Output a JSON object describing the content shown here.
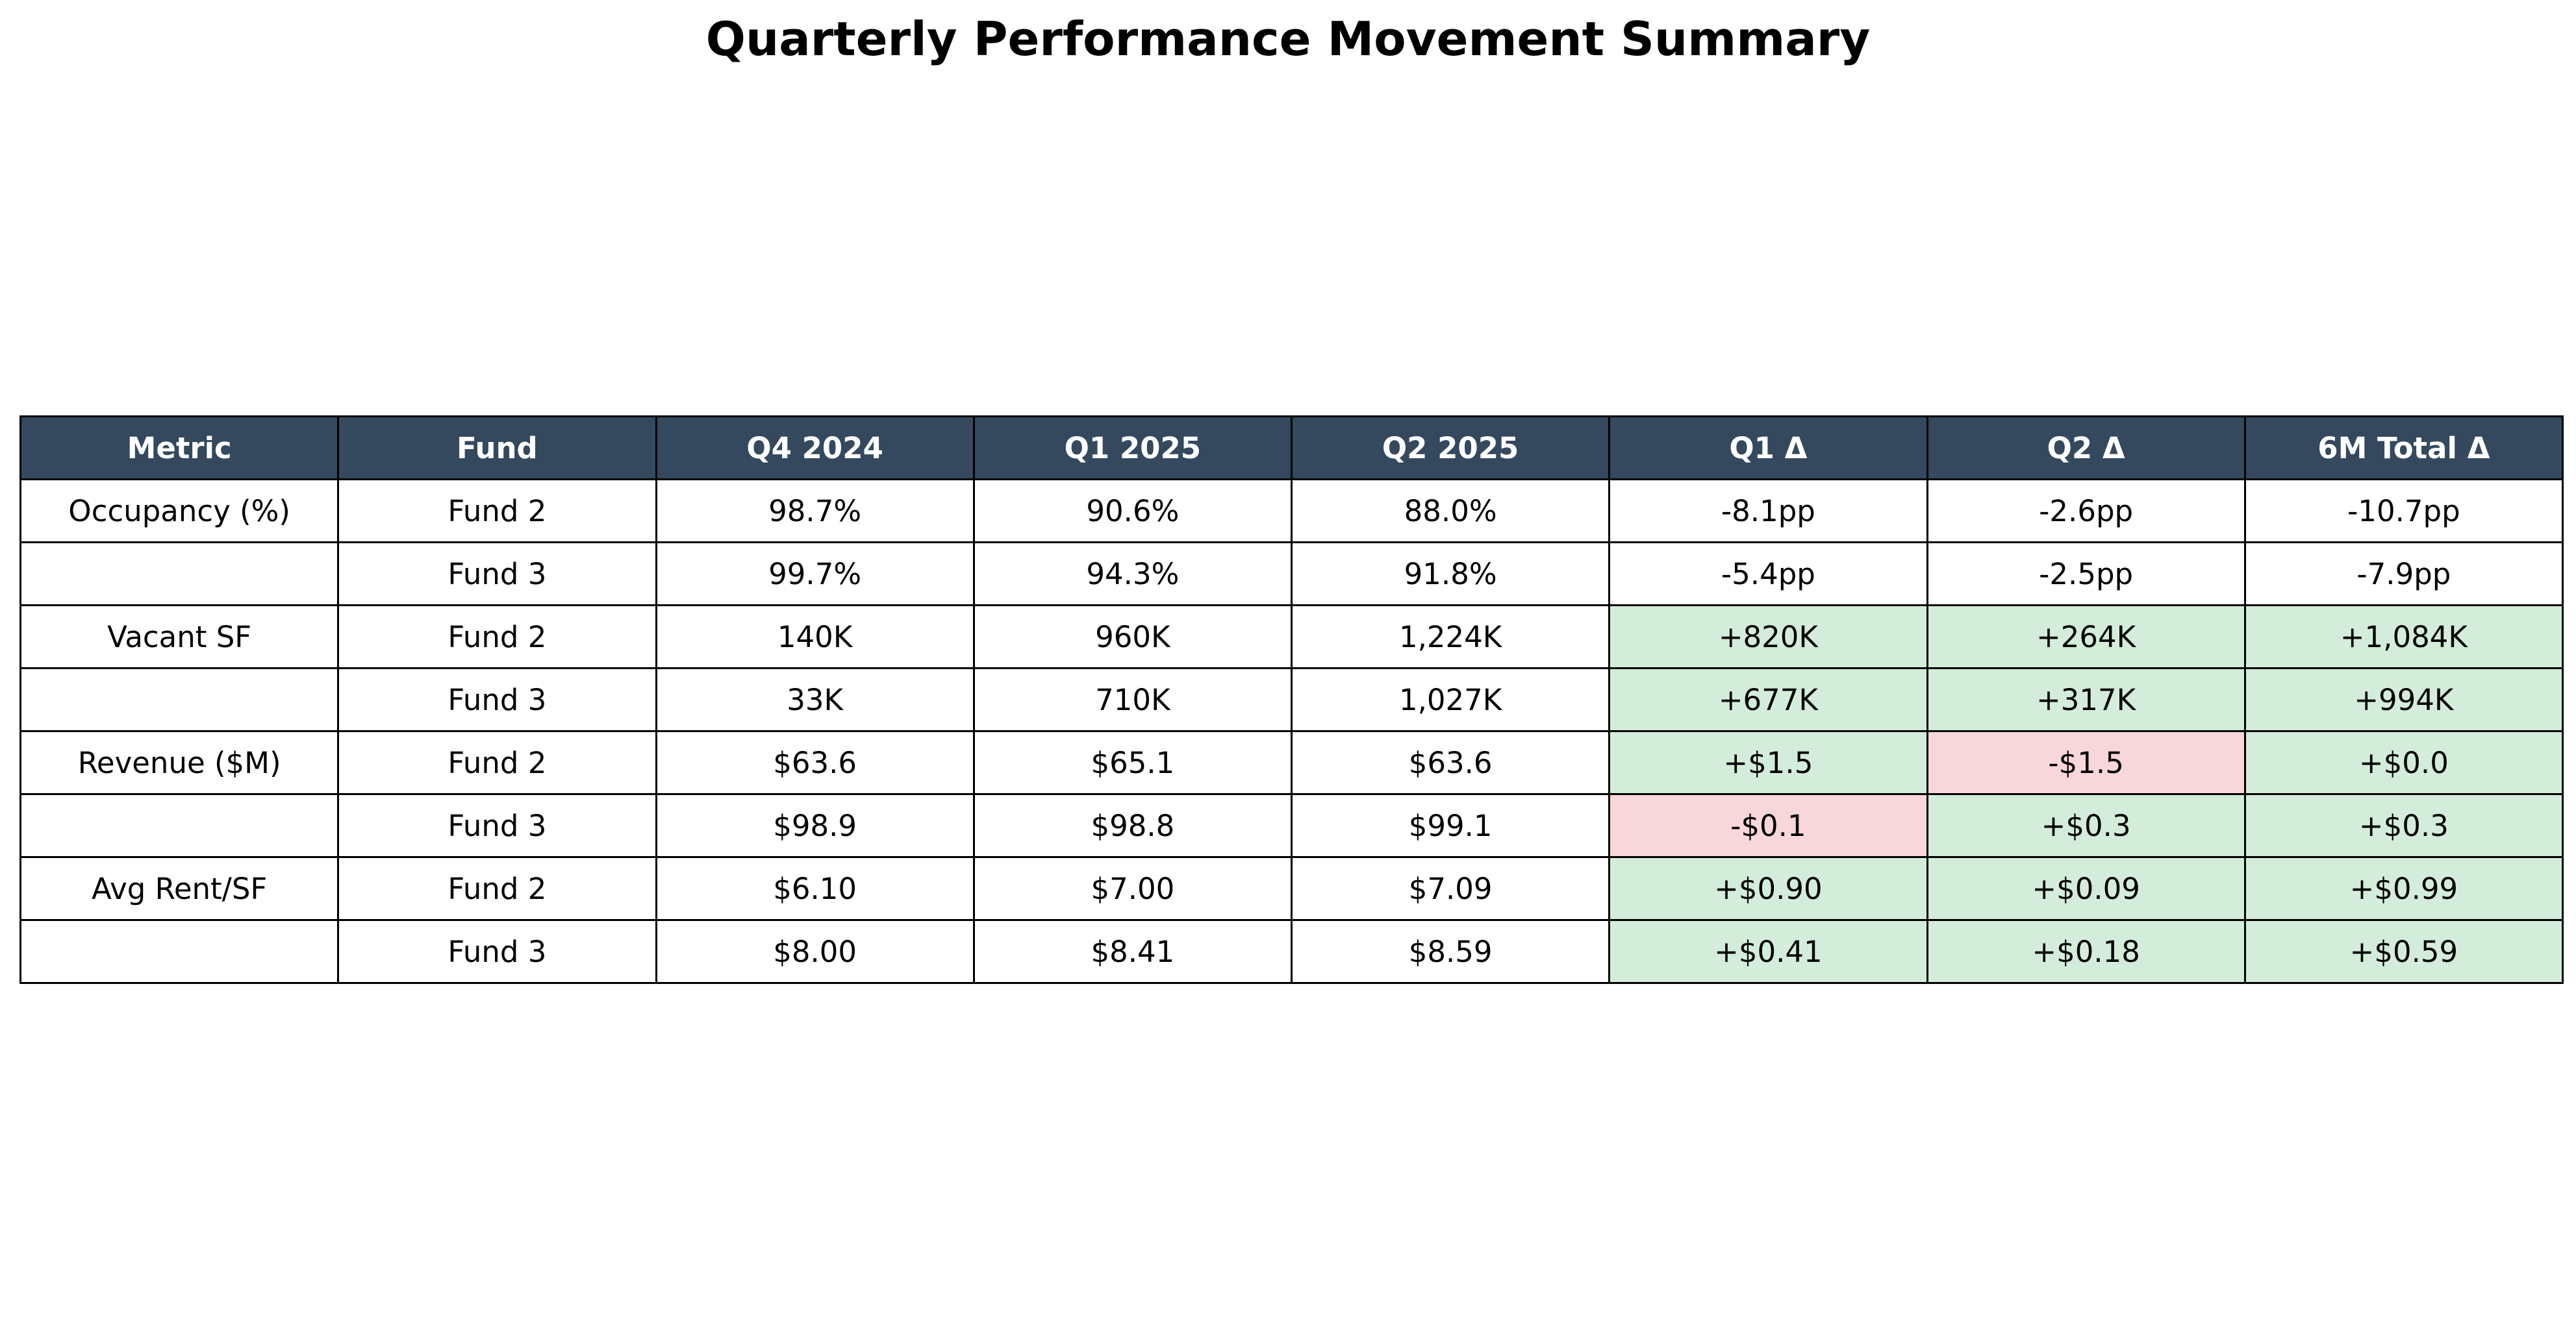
{
  "title": "Quarterly Performance Movement Summary",
  "colors": {
    "header_bg": "#34495e",
    "header_text": "#ffffff",
    "positive_bg": "#d4edda",
    "negative_bg": "#f8d7da",
    "neutral_bg": "#ffffff",
    "border": "#000000"
  },
  "chart_data": {
    "type": "table",
    "title": "Quarterly Performance Movement Summary",
    "columns": [
      "Metric",
      "Fund",
      "Q4 2024",
      "Q1 2025",
      "Q2 2025",
      "Q1 Δ",
      "Q2 Δ",
      "6M Total Δ"
    ],
    "rows": [
      {
        "cells": [
          "Occupancy (%)",
          "Fund 2",
          "98.7%",
          "90.6%",
          "88.0%",
          "-8.1pp",
          "-2.6pp",
          "-10.7pp"
        ],
        "delta_highlight": [
          "none",
          "none",
          "none"
        ]
      },
      {
        "cells": [
          "",
          "Fund 3",
          "99.7%",
          "94.3%",
          "91.8%",
          "-5.4pp",
          "-2.5pp",
          "-7.9pp"
        ],
        "delta_highlight": [
          "none",
          "none",
          "none"
        ]
      },
      {
        "cells": [
          "Vacant SF",
          "Fund 2",
          "140K",
          "960K",
          "1,224K",
          "+820K",
          "+264K",
          "+1,084K"
        ],
        "delta_highlight": [
          "pos",
          "pos",
          "pos"
        ]
      },
      {
        "cells": [
          "",
          "Fund 3",
          "33K",
          "710K",
          "1,027K",
          "+677K",
          "+317K",
          "+994K"
        ],
        "delta_highlight": [
          "pos",
          "pos",
          "pos"
        ]
      },
      {
        "cells": [
          "Revenue ($M)",
          "Fund 2",
          "$63.6",
          "$65.1",
          "$63.6",
          "+$1.5",
          "-$1.5",
          "+$0.0"
        ],
        "delta_highlight": [
          "pos",
          "neg",
          "pos"
        ]
      },
      {
        "cells": [
          "",
          "Fund 3",
          "$98.9",
          "$98.8",
          "$99.1",
          "-$0.1",
          "+$0.3",
          "+$0.3"
        ],
        "delta_highlight": [
          "neg",
          "pos",
          "pos"
        ]
      },
      {
        "cells": [
          "Avg Rent/SF",
          "Fund 2",
          "$6.10",
          "$7.00",
          "$7.09",
          "+$0.90",
          "+$0.09",
          "+$0.99"
        ],
        "delta_highlight": [
          "pos",
          "pos",
          "pos"
        ]
      },
      {
        "cells": [
          "",
          "Fund 3",
          "$8.00",
          "$8.41",
          "$8.59",
          "+$0.41",
          "+$0.18",
          "+$0.59"
        ],
        "delta_highlight": [
          "pos",
          "pos",
          "pos"
        ]
      }
    ]
  }
}
